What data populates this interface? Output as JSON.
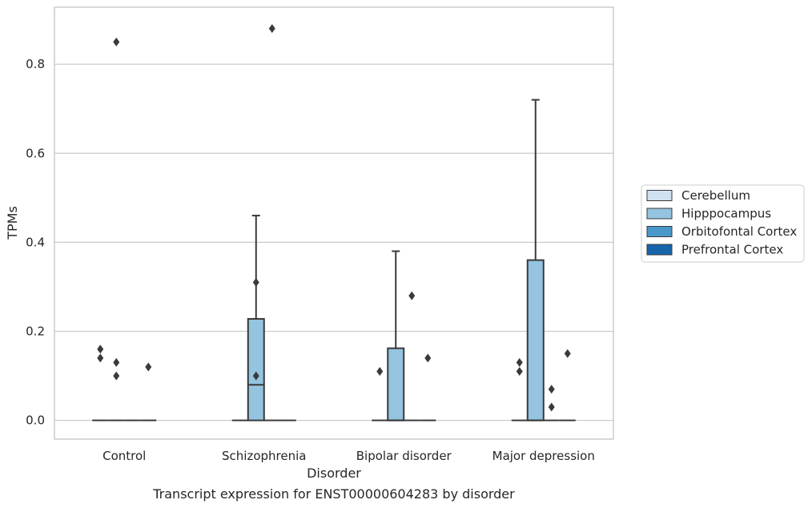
{
  "chart_data": {
    "type": "boxplot",
    "title": "",
    "caption": "Transcript expression for ENST00000604283 by disorder",
    "xlabel": "Disorder",
    "ylabel": "TPMs",
    "ylim": [
      -0.042,
      0.928
    ],
    "yticks": [
      0.0,
      0.2,
      0.4,
      0.6,
      0.8
    ],
    "ytick_labels": [
      "0.0",
      "0.2",
      "0.4",
      "0.6",
      "0.8"
    ],
    "grid": "horizontal",
    "legend_position": "right",
    "categories": [
      "Control",
      "Schizophrenia",
      "Bipolar disorder",
      "Major depression"
    ],
    "series": [
      {
        "name": "Cerebellum",
        "color": "#d0e1f2",
        "boxes": [
          {
            "q1": 0,
            "median": 0,
            "q3": 0,
            "whisker_low": 0,
            "whisker_high": 0,
            "outliers": [
              0.14,
              0.16
            ]
          },
          {
            "q1": 0,
            "median": 0,
            "q3": 0,
            "whisker_low": 0,
            "whisker_high": 0,
            "outliers": []
          },
          {
            "q1": 0,
            "median": 0,
            "q3": 0,
            "whisker_low": 0,
            "whisker_high": 0,
            "outliers": [
              0.11
            ]
          },
          {
            "q1": 0,
            "median": 0,
            "q3": 0,
            "whisker_low": 0,
            "whisker_high": 0,
            "outliers": [
              0.11,
              0.13
            ]
          }
        ]
      },
      {
        "name": "Hipppocampus",
        "color": "#94c4df",
        "boxes": [
          {
            "q1": 0,
            "median": 0,
            "q3": 0,
            "whisker_low": 0,
            "whisker_high": 0,
            "outliers": [
              0.85,
              0.1,
              0.13
            ]
          },
          {
            "q1": 0,
            "median": 0.08,
            "q3": 0.228,
            "whisker_low": 0,
            "whisker_high": 0.46,
            "outliers": [
              0.31,
              0.1
            ]
          },
          {
            "q1": 0,
            "median": 0,
            "q3": 0.162,
            "whisker_low": 0,
            "whisker_high": 0.38,
            "outliers": []
          },
          {
            "q1": 0,
            "median": 0,
            "q3": 0.36,
            "whisker_low": 0,
            "whisker_high": 0.72,
            "outliers": []
          }
        ]
      },
      {
        "name": "Orbitofontal Cortex",
        "color": "#4a98c9",
        "boxes": [
          {
            "q1": 0,
            "median": 0,
            "q3": 0,
            "whisker_low": 0,
            "whisker_high": 0,
            "outliers": []
          },
          {
            "q1": 0,
            "median": 0,
            "q3": 0,
            "whisker_low": 0,
            "whisker_high": 0,
            "outliers": [
              0.88
            ]
          },
          {
            "q1": 0,
            "median": 0,
            "q3": 0,
            "whisker_low": 0,
            "whisker_high": 0,
            "outliers": [
              0.28
            ]
          },
          {
            "q1": 0,
            "median": 0,
            "q3": 0,
            "whisker_low": 0,
            "whisker_high": 0,
            "outliers": [
              0.03,
              0.07
            ]
          }
        ]
      },
      {
        "name": "Prefrontal Cortex",
        "color": "#1764ab",
        "boxes": [
          {
            "q1": 0,
            "median": 0,
            "q3": 0,
            "whisker_low": 0,
            "whisker_high": 0,
            "outliers": [
              0.12
            ]
          },
          {
            "q1": 0,
            "median": 0,
            "q3": 0,
            "whisker_low": 0,
            "whisker_high": 0,
            "outliers": []
          },
          {
            "q1": 0,
            "median": 0,
            "q3": 0,
            "whisker_low": 0,
            "whisker_high": 0,
            "outliers": [
              0.14
            ]
          },
          {
            "q1": 0,
            "median": 0,
            "q3": 0,
            "whisker_low": 0,
            "whisker_high": 0,
            "outliers": [
              0.15
            ]
          }
        ]
      }
    ]
  }
}
